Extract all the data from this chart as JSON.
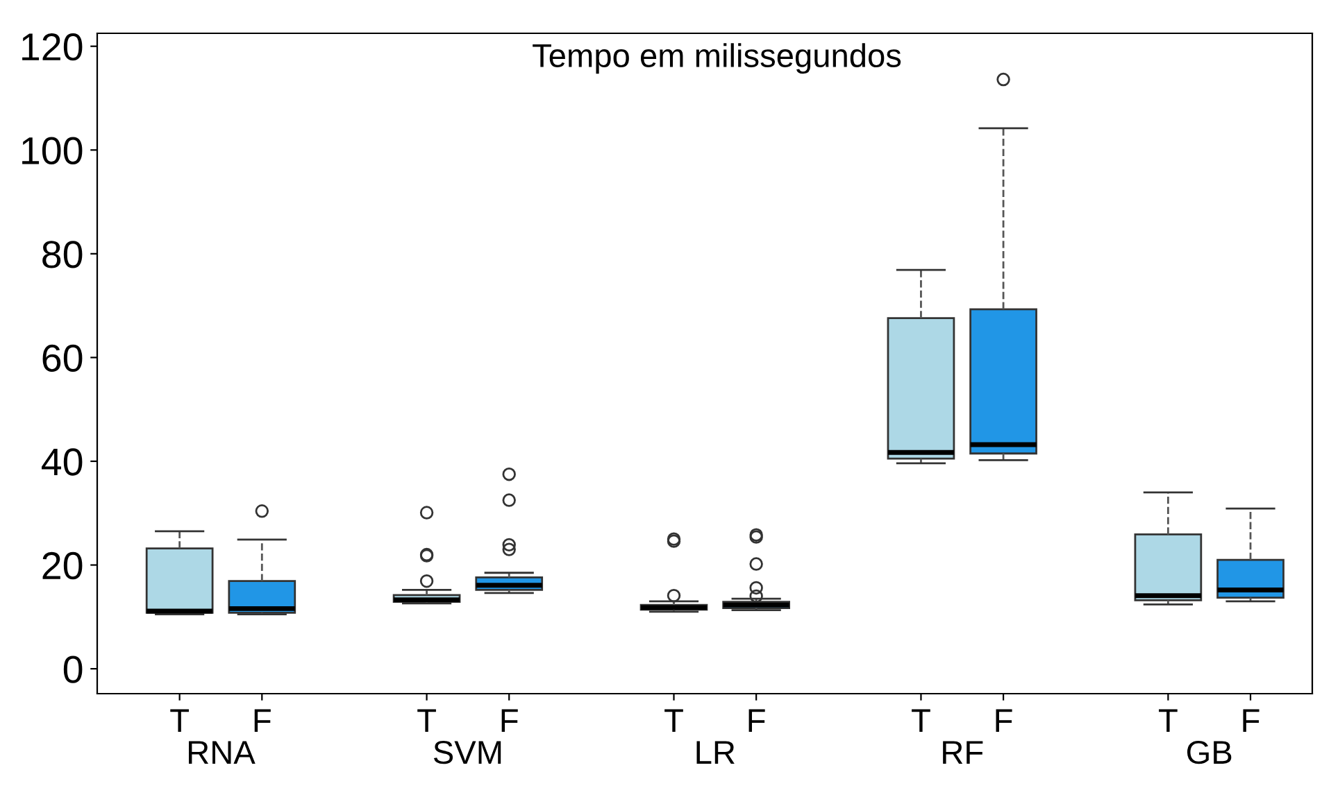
{
  "chart_data": {
    "type": "box",
    "title": "Tempo em milissegundos",
    "categories": [
      "T",
      "F",
      "T",
      "F",
      "T",
      "F",
      "T",
      "F",
      "T",
      "F"
    ],
    "colors": [
      "#add8e6",
      "#2196e6",
      "#add8e6",
      "#2196e6",
      "#add8e6",
      "#2196e6",
      "#add8e6",
      "#2196e6",
      "#add8e6",
      "#2196e6"
    ],
    "boxes": [
      {
        "low": 10.5,
        "q1": 10.8,
        "median": 11.1,
        "q3": 23.2,
        "high": 26.5
      },
      {
        "low": 10.5,
        "q1": 10.8,
        "median": 11.6,
        "q3": 16.9,
        "high": 24.9,
        "outliers": [
          30.4
        ]
      },
      {
        "low": 12.6,
        "q1": 12.9,
        "median": 13.3,
        "q3": 14.2,
        "high": 15.2,
        "outliers": [
          30.1,
          22.0,
          21.8,
          16.9
        ]
      },
      {
        "low": 14.6,
        "q1": 15.2,
        "median": 16.1,
        "q3": 17.6,
        "high": 18.5,
        "outliers": [
          37.5,
          32.5,
          23.9,
          23.0
        ]
      },
      {
        "low": 11.0,
        "q1": 11.4,
        "median": 11.8,
        "q3": 12.3,
        "high": 13.0,
        "outliers": [
          25.0,
          24.6,
          14.1
        ]
      },
      {
        "low": 11.3,
        "q1": 11.7,
        "median": 12.3,
        "q3": 12.9,
        "high": 13.5,
        "outliers": [
          25.8,
          25.4,
          20.2,
          15.6,
          14.0
        ]
      },
      {
        "low": 39.6,
        "q1": 40.5,
        "median": 41.7,
        "q3": 67.6,
        "high": 76.9
      },
      {
        "low": 40.2,
        "q1": 41.5,
        "median": 43.2,
        "q3": 69.3,
        "high": 104.2,
        "outliers": [
          113.6
        ]
      },
      {
        "low": 12.4,
        "q1": 13.2,
        "median": 14.1,
        "q3": 25.9,
        "high": 34.0
      },
      {
        "low": 13.0,
        "q1": 13.7,
        "median": 15.2,
        "q3": 21.0,
        "high": 30.9
      }
    ],
    "annotations": [
      "RNA",
      "SVM",
      "LR",
      "RF",
      "GB"
    ],
    "ylim": [
      -4.8,
      122.5
    ],
    "yticks": [
      0,
      20,
      40,
      60,
      80,
      100,
      120
    ],
    "line_style": "dashed",
    "grid": false,
    "legend": false
  }
}
